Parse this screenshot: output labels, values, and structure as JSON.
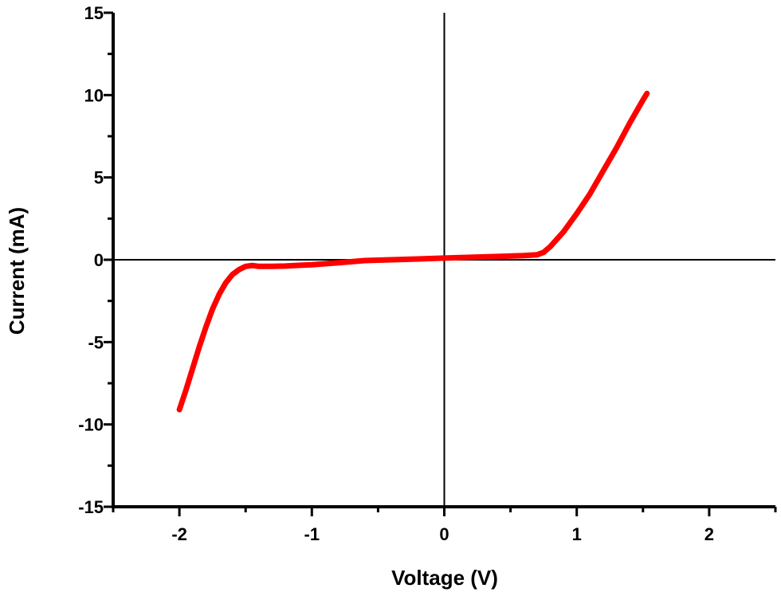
{
  "chart_data": {
    "type": "line",
    "title": "",
    "xlabel": "Voltage (V)",
    "ylabel": "Current (mA)",
    "xlim": [
      -2.5,
      2.5
    ],
    "ylim": [
      -15,
      15
    ],
    "x_ticks": [
      -2,
      -1,
      0,
      1,
      2
    ],
    "x_tick_labels": [
      "-2",
      "-1",
      "0",
      "1",
      "2"
    ],
    "y_ticks": [
      -15,
      -10,
      -5,
      0,
      5,
      10,
      15
    ],
    "y_tick_labels": [
      "-15",
      "-10",
      "-5",
      "0",
      "5",
      "10",
      "15"
    ],
    "grid": false,
    "zero_lines": true,
    "series": [
      {
        "color": "#ff0000",
        "x": [
          -2.0,
          -1.95,
          -1.9,
          -1.85,
          -1.8,
          -1.75,
          -1.7,
          -1.65,
          -1.6,
          -1.55,
          -1.5,
          -1.45,
          -1.4,
          -1.3,
          -1.2,
          -1.0,
          -0.8,
          -0.6,
          -0.4,
          -0.2,
          0.0,
          0.2,
          0.4,
          0.6,
          0.7,
          0.75,
          0.8,
          0.9,
          1.0,
          1.1,
          1.2,
          1.3,
          1.4,
          1.45,
          1.5,
          1.53
        ],
        "y": [
          -9.1,
          -7.9,
          -6.6,
          -5.3,
          -4.1,
          -3.0,
          -2.1,
          -1.4,
          -0.9,
          -0.6,
          -0.4,
          -0.35,
          -0.4,
          -0.4,
          -0.38,
          -0.3,
          -0.18,
          -0.05,
          0.0,
          0.05,
          0.1,
          0.15,
          0.2,
          0.25,
          0.3,
          0.45,
          0.8,
          1.7,
          2.8,
          4.0,
          5.4,
          6.8,
          8.3,
          9.0,
          9.7,
          10.1
        ]
      }
    ]
  }
}
